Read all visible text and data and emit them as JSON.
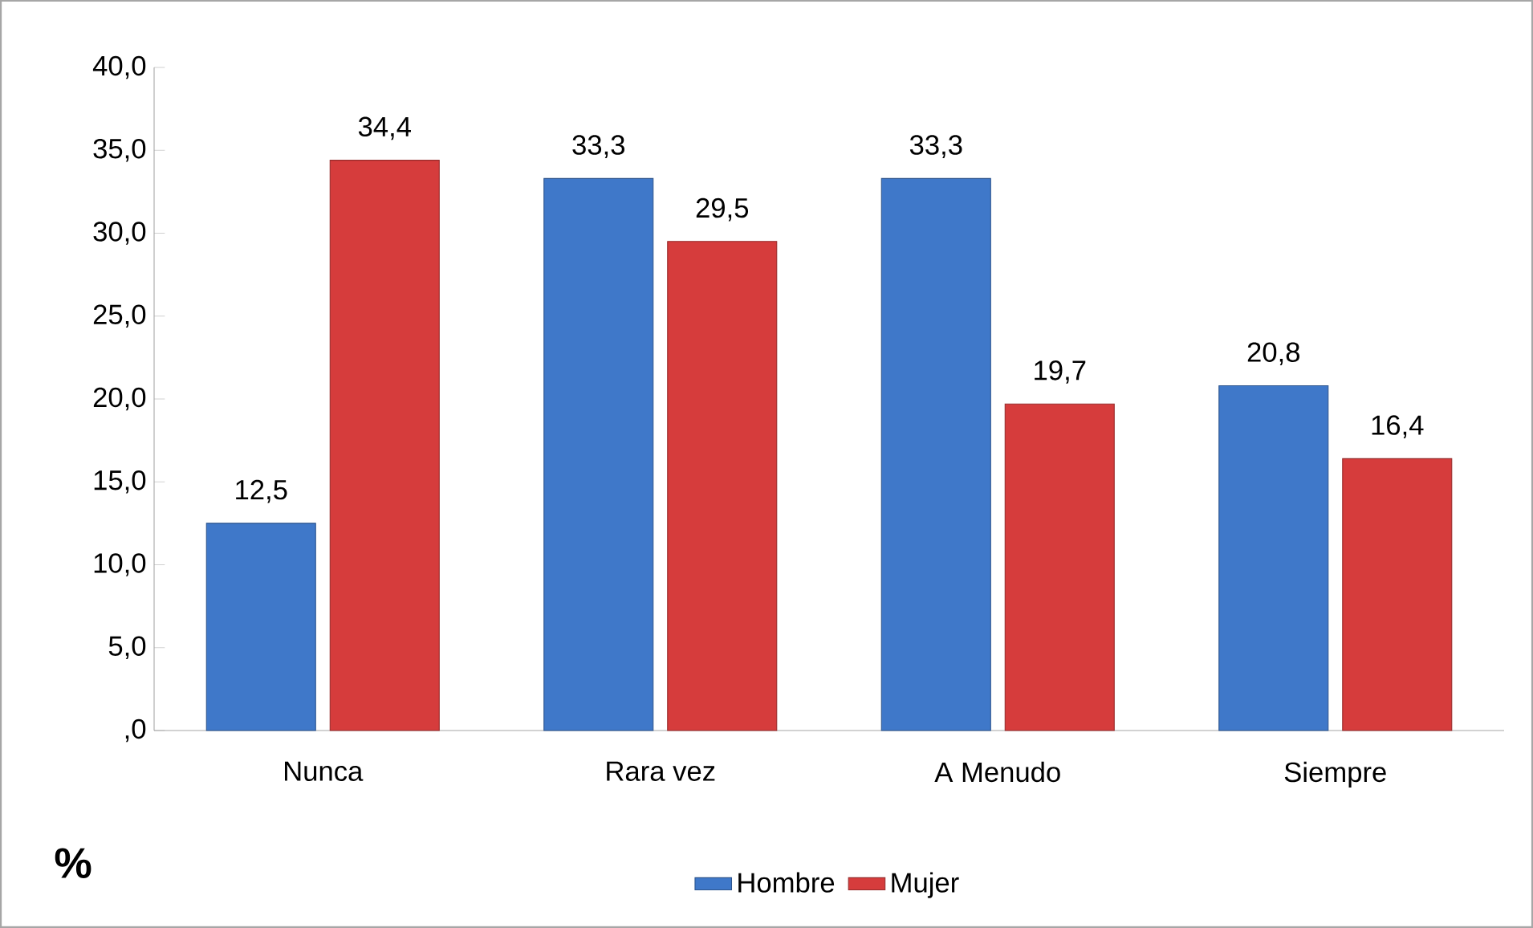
{
  "chart_data": {
    "type": "bar",
    "ylabel": "%",
    "categories": [
      "Nunca",
      "Rara vez",
      "A Menudo",
      "Siempre"
    ],
    "series": [
      {
        "name": "Hombre",
        "color": "#3f78c9",
        "values": [
          12.5,
          33.3,
          33.3,
          20.8
        ],
        "value_labels": [
          "12,5",
          "33,3",
          "33,3",
          "20,8"
        ]
      },
      {
        "name": "Mujer",
        "color": "#d63c3c",
        "values": [
          34.4,
          29.5,
          19.7,
          16.4
        ],
        "value_labels": [
          "34,4",
          "29,5",
          "19,7",
          "16,4"
        ]
      }
    ],
    "ylim": [
      0,
      40
    ],
    "yticks": [
      {
        "value": 0,
        "label": ",0"
      },
      {
        "value": 5,
        "label": "5,0"
      },
      {
        "value": 10,
        "label": "10,0"
      },
      {
        "value": 15,
        "label": "15,0"
      },
      {
        "value": 20,
        "label": "20,0"
      },
      {
        "value": 25,
        "label": "25,0"
      },
      {
        "value": 30,
        "label": "30,0"
      },
      {
        "value": 35,
        "label": "35,0"
      },
      {
        "value": 40,
        "label": "40,0"
      }
    ],
    "grid": false,
    "legend": "bottom"
  }
}
